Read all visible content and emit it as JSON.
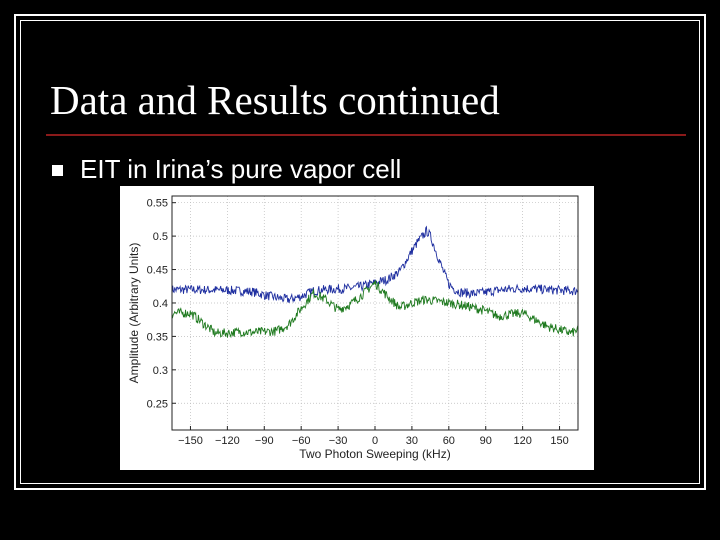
{
  "slide": {
    "title": "Data and Results continued",
    "bullet_text": "EIT in Irina’s pure vapor cell"
  },
  "colors": {
    "background": "#000000",
    "title_rule": "#8b1a1a",
    "series_blue": "#1f2fa0",
    "series_green": "#1f7a1f"
  },
  "chart_data": {
    "type": "line",
    "xlabel": "Two Photon Sweeping (kHz)",
    "ylabel": "Amplitude (Arbitrary Units)",
    "xlim": [
      -165,
      165
    ],
    "ylim": [
      0.21,
      0.56
    ],
    "x_ticks": [
      -150,
      -120,
      -90,
      -60,
      -30,
      0,
      30,
      60,
      90,
      120,
      150
    ],
    "x_tick_labels": [
      "−150",
      "−120",
      "−90",
      "−60",
      "−30",
      "0",
      "30",
      "60",
      "90",
      "120",
      "150"
    ],
    "y_ticks": [
      0.25,
      0.3,
      0.35,
      0.4,
      0.45,
      0.5,
      0.55
    ],
    "y_tick_labels": [
      "0.25",
      "0.3",
      "0.35",
      "0.4",
      "0.45",
      "0.5",
      "0.55"
    ],
    "grid": true,
    "series": [
      {
        "color": "#1f2fa0",
        "x": [
          -165,
          -150,
          -120,
          -100,
          -90,
          -80,
          -70,
          -60,
          -50,
          -40,
          -30,
          -20,
          -10,
          0,
          10,
          20,
          25,
          30,
          35,
          40,
          42,
          45,
          50,
          55,
          60,
          65,
          70,
          80,
          90,
          100,
          110,
          120,
          130,
          140,
          150,
          160,
          165
        ],
        "y": [
          0.42,
          0.42,
          0.419,
          0.417,
          0.412,
          0.408,
          0.405,
          0.41,
          0.418,
          0.42,
          0.421,
          0.422,
          0.425,
          0.43,
          0.435,
          0.447,
          0.462,
          0.478,
          0.492,
          0.503,
          0.508,
          0.5,
          0.475,
          0.45,
          0.428,
          0.42,
          0.416,
          0.414,
          0.416,
          0.419,
          0.421,
          0.422,
          0.421,
          0.42,
          0.419,
          0.418,
          0.418
        ]
      },
      {
        "color": "#1f7a1f",
        "x": [
          -165,
          -150,
          -140,
          -130,
          -120,
          -110,
          -100,
          -90,
          -80,
          -70,
          -60,
          -50,
          -40,
          -30,
          -20,
          -10,
          0,
          10,
          20,
          30,
          40,
          50,
          60,
          70,
          80,
          90,
          100,
          110,
          120,
          130,
          140,
          150,
          160,
          165
        ],
        "y": [
          0.385,
          0.385,
          0.37,
          0.355,
          0.355,
          0.357,
          0.356,
          0.357,
          0.358,
          0.368,
          0.392,
          0.415,
          0.405,
          0.39,
          0.398,
          0.413,
          0.43,
          0.41,
          0.393,
          0.4,
          0.405,
          0.403,
          0.4,
          0.397,
          0.393,
          0.388,
          0.38,
          0.383,
          0.385,
          0.375,
          0.365,
          0.36,
          0.355,
          0.36
        ]
      }
    ]
  }
}
